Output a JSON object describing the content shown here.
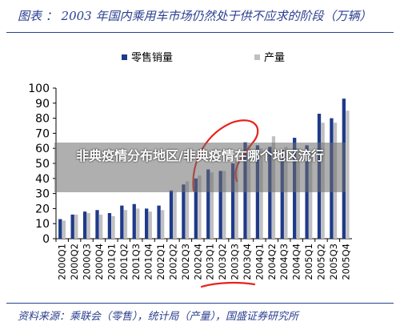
{
  "header": {
    "title": "图表    ：  2003 年国内乘用车市场仍然处于供不应求的阶段（万辆）"
  },
  "overlay": {
    "text": "非典疫情分布地区/非典疫情在哪个地区流行"
  },
  "footer": {
    "source": "资料来源：乘联会（零售），统计局（产量），国盛证券研究所"
  },
  "colors": {
    "sales": "#1f3a8a",
    "production": "#c0c0c0",
    "title": "#2a3f8f",
    "annotation": "#e8221c"
  },
  "chart_data": {
    "type": "bar",
    "categories": [
      "2000Q1",
      "2000Q2",
      "2000Q3",
      "2000Q4",
      "2001Q1",
      "2001Q2",
      "2001Q3",
      "2001Q4",
      "2002Q1",
      "2002Q2",
      "2002Q3",
      "2002Q4",
      "2003Q1",
      "2003Q2",
      "2003Q3",
      "2003Q4",
      "2004Q1",
      "2004Q2",
      "2004Q3",
      "2004Q4",
      "2005Q1",
      "2005Q2",
      "2005Q3",
      "2005Q4"
    ],
    "series": [
      {
        "name": "零售销量",
        "values": [
          13,
          16,
          18,
          19,
          17,
          22,
          23,
          20,
          22,
          32,
          36,
          40,
          46,
          45,
          50,
          64,
          62,
          61,
          59,
          67,
          62,
          83,
          80,
          93
        ]
      },
      {
        "name": "产量",
        "values": [
          12,
          16,
          17,
          16,
          15,
          19,
          20,
          18,
          19,
          31,
          38,
          42,
          44,
          45,
          52,
          62,
          60,
          68,
          61,
          60,
          58,
          77,
          77,
          85
        ]
      }
    ],
    "yticks": [
      0,
      10,
      20,
      30,
      40,
      50,
      60,
      70,
      80,
      90,
      100
    ],
    "ylim": [
      0,
      100
    ],
    "legend_position": "top-center",
    "grid": false
  }
}
